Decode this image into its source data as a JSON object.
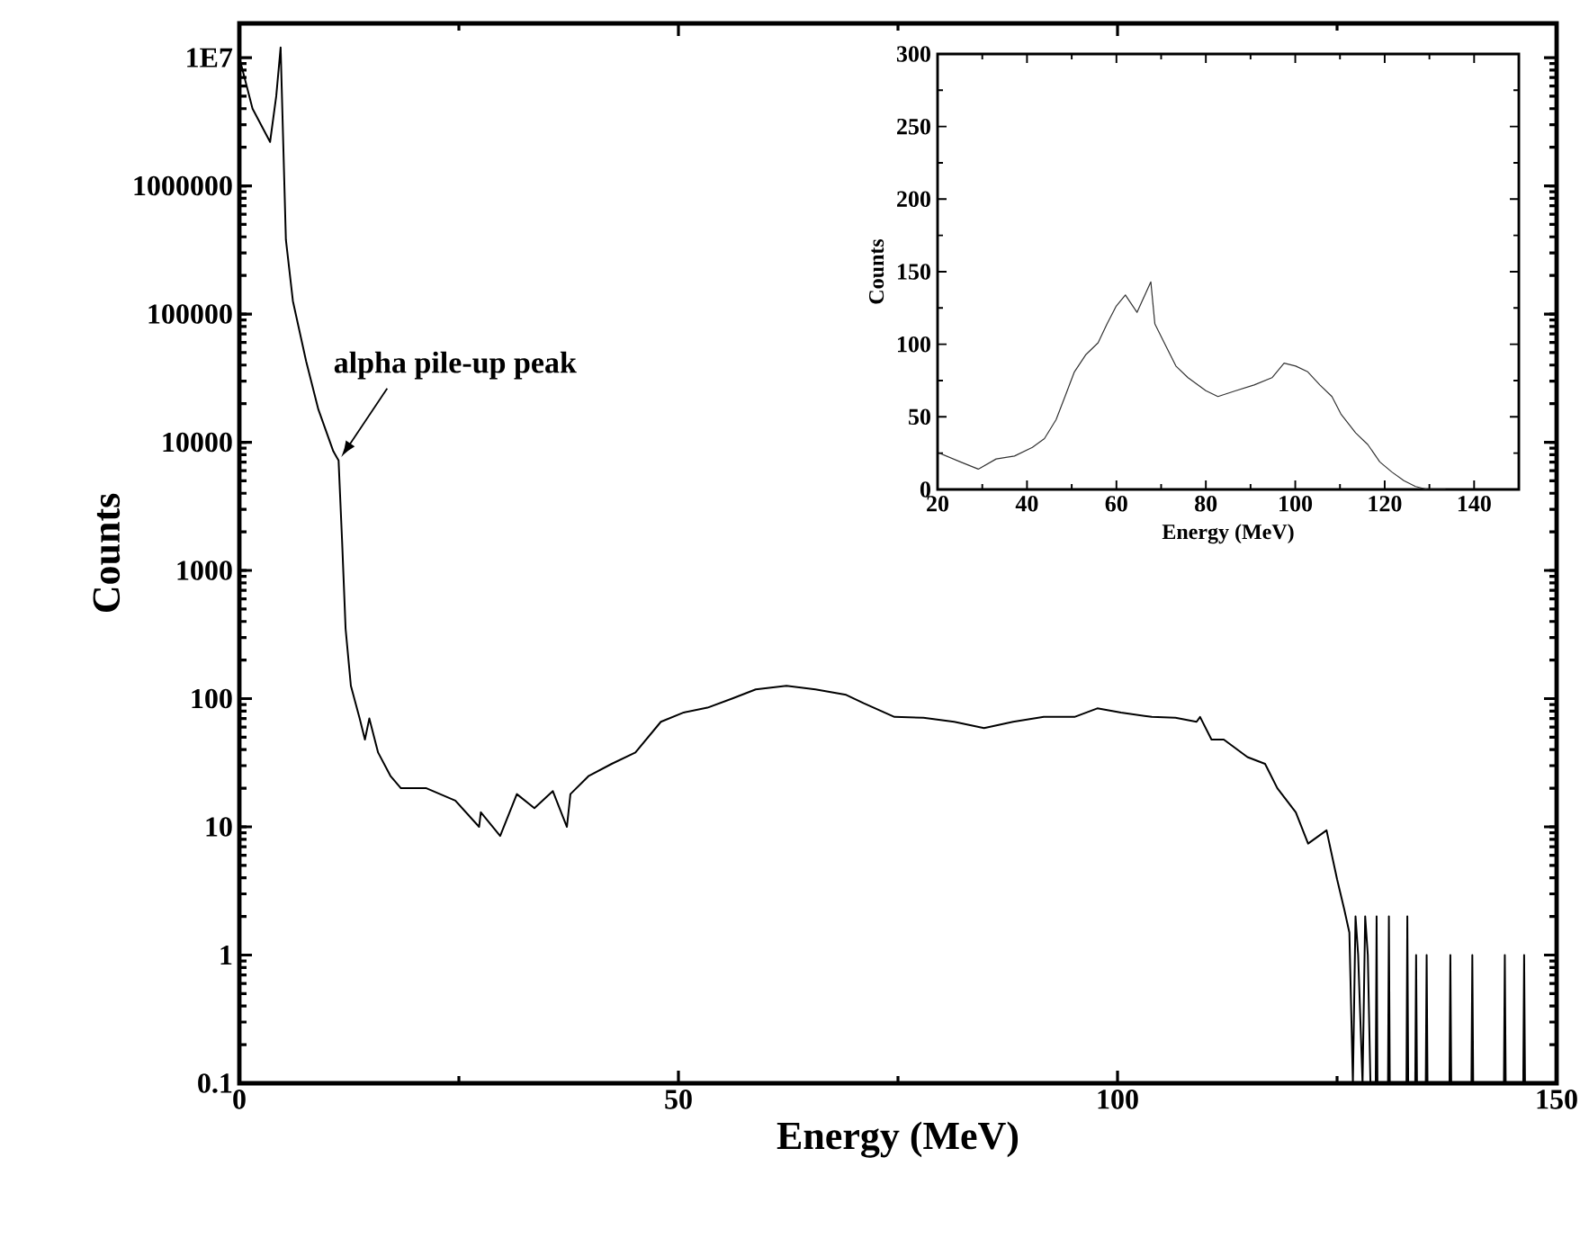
{
  "chart_data": [
    {
      "type": "line",
      "xlabel": "Energy (MeV)",
      "ylabel": "Counts",
      "log": "y",
      "color": "#000000",
      "xlim": [
        0,
        150
      ],
      "xticks": [
        0,
        50,
        100,
        150
      ],
      "ylim": [
        0.1,
        18500000
      ],
      "yticks": [
        0.1,
        1,
        10,
        100,
        1000,
        10000,
        100000,
        1000000,
        {
          "value": 10000000,
          "label": "1E7"
        }
      ],
      "x": [
        0,
        1.5,
        3.5,
        4.2,
        4.7,
        5.3,
        6.1,
        7.6,
        9.0,
        10.7,
        11.3,
        11.7,
        12.1,
        12.7,
        13.7,
        14.3,
        14.8,
        15.8,
        17.2,
        18.4,
        21.3,
        24.6,
        27.3,
        27.5,
        29.7,
        31.6,
        33.6,
        35.7,
        37.3,
        37.7,
        39.8,
        42.4,
        45.1,
        48.0,
        50.6,
        53.3,
        56.1,
        58.8,
        62.3,
        65.6,
        69.1,
        71.1,
        74.6,
        77.9,
        81.4,
        84.8,
        88.1,
        91.6,
        95.1,
        97.7,
        100.4,
        103.9,
        106.6,
        109.0,
        109.4,
        110.7,
        112.1,
        114.8,
        116.8,
        118.2,
        120.3,
        121.7,
        123.8,
        125.0,
        125.8,
        126.4,
        126.8,
        127.1,
        127.4,
        127.9,
        128.2,
        128.5,
        128.8,
        129.4,
        129.5,
        129.6,
        130.8,
        130.9,
        131.0,
        132.9,
        133.0,
        133.1,
        133.9,
        134.0,
        134.1,
        135.1,
        135.2,
        135.3,
        137.8,
        137.9,
        138.0,
        140.3,
        140.4,
        140.5,
        144.0,
        144.1,
        144.2,
        146.2,
        146.3,
        146.4,
        147
      ],
      "values": [
        10000000,
        4000000,
        2200000,
        5000000,
        12000000,
        380000,
        126000,
        43000,
        18000,
        8500,
        7200,
        1700,
        350,
        126,
        70,
        48,
        70,
        38,
        25,
        20,
        20,
        16,
        10,
        13,
        8.5,
        18,
        14,
        19,
        10,
        18,
        25,
        31,
        38,
        66,
        78,
        85,
        100,
        118,
        126,
        118,
        107,
        92,
        72,
        71,
        66,
        59,
        66,
        72,
        72,
        84,
        78,
        72,
        71,
        66,
        72,
        48,
        48,
        35,
        31,
        20,
        13,
        7.4,
        9.4,
        3.9,
        2.3,
        1.5,
        0.1,
        2,
        1,
        0.1,
        2,
        1,
        0.1,
        0.1,
        2,
        0.1,
        0.1,
        2,
        0.1,
        0.1,
        2,
        0.1,
        0.1,
        1,
        0.1,
        0.1,
        1,
        0.1,
        0.1,
        1,
        0.1,
        0.1,
        1,
        0.1,
        0.1,
        1,
        0.1,
        0.1,
        1,
        0.1,
        0.1
      ],
      "annotations": [
        {
          "text": "alpha pile-up peak",
          "x": 11.3,
          "y": 7200
        }
      ]
    },
    {
      "type": "line",
      "xlabel": "Energy (MeV)",
      "ylabel": "Counts",
      "color": "#333333",
      "xlim": [
        20,
        150
      ],
      "xticks": [
        20,
        40,
        60,
        80,
        100,
        120,
        140
      ],
      "ylim": [
        0,
        300
      ],
      "yticks": [
        0,
        50,
        100,
        150,
        200,
        250,
        300
      ],
      "x": [
        20.4,
        25.1,
        29.1,
        33.1,
        37.2,
        41.2,
        43.9,
        46.5,
        48.5,
        50.6,
        53.2,
        55.9,
        57.9,
        59.9,
        62.0,
        64.6,
        67.7,
        68.6,
        70.7,
        73.3,
        76.0,
        80.0,
        82.7,
        86.7,
        90.8,
        94.8,
        97.5,
        100.1,
        102.8,
        105.5,
        108.2,
        110.2,
        113.5,
        116.2,
        118.9,
        121.6,
        124.3,
        126.9,
        129.6,
        133.6
      ],
      "values": [
        25,
        19,
        14,
        21,
        23,
        29,
        35,
        48,
        64,
        81,
        93,
        101,
        114,
        126,
        134,
        122,
        143,
        114,
        101,
        85,
        77,
        68,
        64,
        68,
        72,
        77,
        87,
        85,
        81,
        72,
        64,
        52,
        39,
        31,
        19,
        12,
        6,
        2,
        0,
        0
      ]
    }
  ]
}
